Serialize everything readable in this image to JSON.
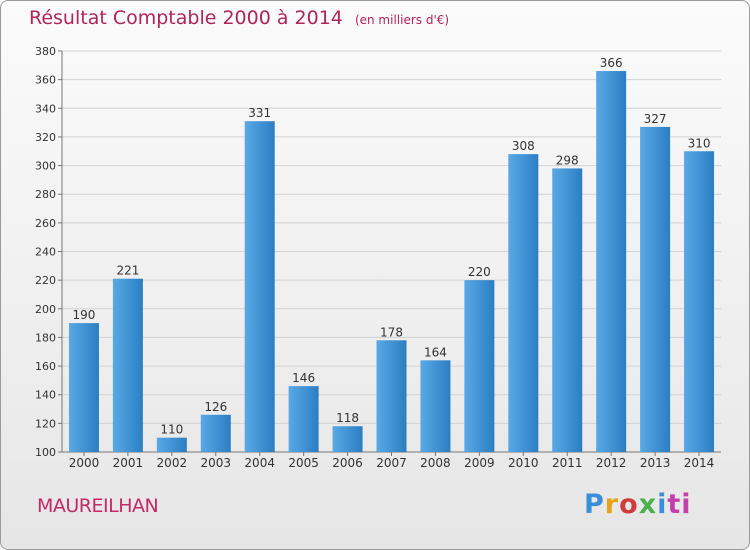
{
  "chart_data": {
    "type": "bar",
    "title": "Résultat Comptable 2000 à 2014",
    "unit_label": "(en milliers d'€)",
    "categories": [
      "2000",
      "2001",
      "2002",
      "2003",
      "2004",
      "2005",
      "2006",
      "2007",
      "2008",
      "2009",
      "2010",
      "2011",
      "2012",
      "2013",
      "2014"
    ],
    "values": [
      190,
      221,
      110,
      126,
      331,
      146,
      118,
      178,
      164,
      220,
      308,
      298,
      366,
      327,
      310
    ],
    "ylim": [
      100,
      380
    ],
    "yticks": [
      100,
      120,
      140,
      160,
      180,
      200,
      220,
      240,
      260,
      280,
      300,
      320,
      340,
      360,
      380
    ],
    "xlabel": "",
    "ylabel": "",
    "grid": true,
    "bar_color_light": "#5aa9e6",
    "bar_color_dark": "#2a7ec2"
  },
  "place_name": "MAUREILHAN",
  "brand": {
    "letters": [
      "P",
      "r",
      "o",
      "x",
      "i",
      "ti"
    ]
  }
}
